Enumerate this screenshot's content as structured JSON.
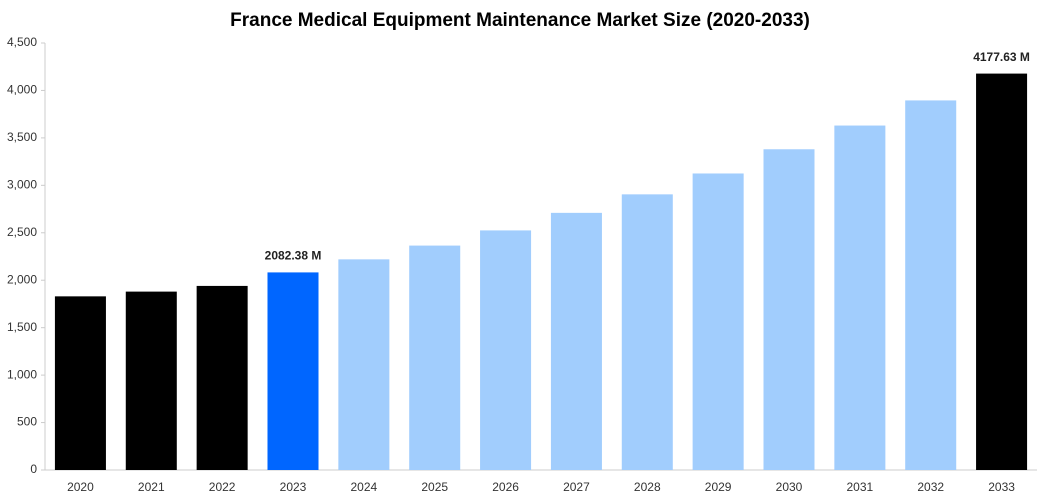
{
  "chart_data": {
    "type": "bar",
    "title": "France Medical Equipment Maintenance Market Size (2020-2033)",
    "categories": [
      "2020",
      "2021",
      "2022",
      "2023",
      "2024",
      "2025",
      "2026",
      "2027",
      "2028",
      "2029",
      "2030",
      "2031",
      "2032",
      "2033"
    ],
    "values": [
      1830,
      1880,
      1940,
      2082.38,
      2220,
      2365,
      2525,
      2710,
      2905,
      3125,
      3380,
      3630,
      3895,
      4177.63
    ],
    "value_labels": [
      null,
      null,
      null,
      "2082.38 M",
      null,
      null,
      null,
      null,
      null,
      null,
      null,
      null,
      null,
      "4177.63 M"
    ],
    "colors": [
      "#000000",
      "#000000",
      "#000000",
      "#0066ff",
      "#a1cdfd",
      "#a1cdfd",
      "#a1cdfd",
      "#a1cdfd",
      "#a1cdfd",
      "#a1cdfd",
      "#a1cdfd",
      "#a1cdfd",
      "#a1cdfd",
      "#000000"
    ],
    "ylim": [
      0,
      4500
    ],
    "yticks": [
      0,
      500,
      {
        "value": 1000,
        "label": "1,000"
      },
      {
        "value": 1500,
        "label": "1,500"
      },
      {
        "value": 2000,
        "label": "2,000"
      },
      {
        "value": 2500,
        "label": "2,500"
      },
      {
        "value": 3000,
        "label": "3,000"
      },
      {
        "value": 3500,
        "label": "3,500"
      },
      {
        "value": 4000,
        "label": "4,000"
      },
      {
        "value": 4500,
        "label": "4,500"
      }
    ],
    "grid": false
  }
}
